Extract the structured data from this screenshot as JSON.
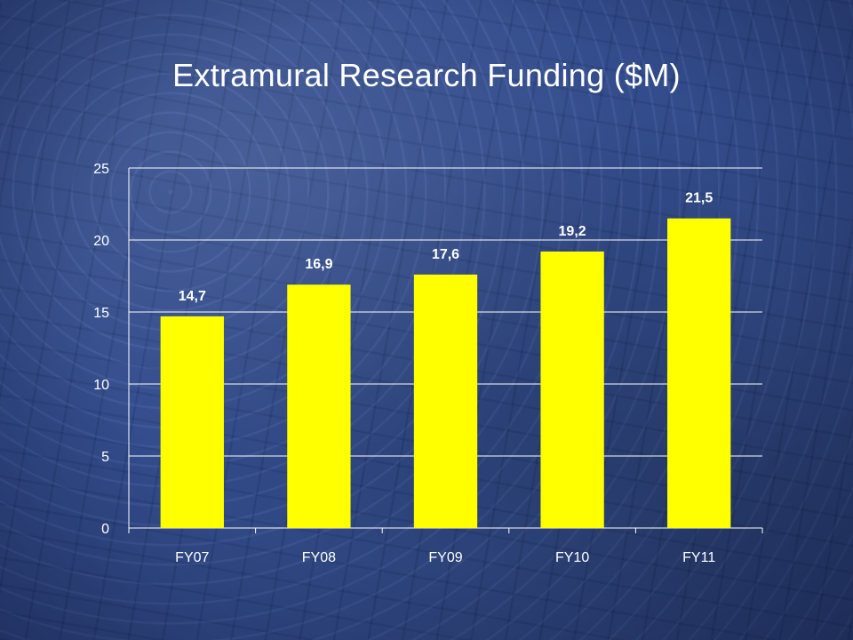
{
  "title": "Extramural Research Funding ($M)",
  "colors": {
    "background": "#2e4a8f",
    "bar": "#ffff00",
    "gridline": "#ffffff",
    "text": "#ffffff"
  },
  "chart_data": {
    "type": "bar",
    "title": "Extramural Research Funding ($M)",
    "categories": [
      "FY07",
      "FY08",
      "FY09",
      "FY10",
      "FY11"
    ],
    "values": [
      14.7,
      16.9,
      17.6,
      19.2,
      21.5
    ],
    "data_labels": [
      "14,7",
      "16,9",
      "17,6",
      "19,2",
      "21,5"
    ],
    "xlabel": "",
    "ylabel": "",
    "ylim": [
      0,
      25
    ],
    "yticks": [
      0,
      5,
      10,
      15,
      20,
      25
    ],
    "grid": true,
    "legend": "none"
  }
}
